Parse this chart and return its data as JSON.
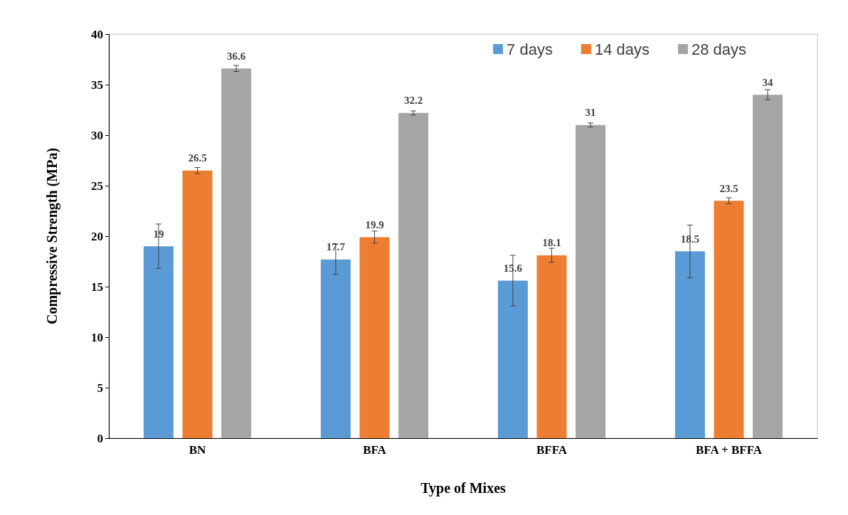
{
  "chart_data": {
    "type": "bar",
    "xlabel": "Type of Mixes",
    "ylabel": "Compressive Strength (MPa)",
    "categories": [
      "BN",
      "BFA",
      "BFFA",
      "BFA + BFFA"
    ],
    "series": [
      {
        "name": "7 days",
        "color": "#5b9bd5",
        "values": [
          19,
          17.7,
          15.6,
          18.5
        ],
        "errors": [
          2.2,
          1.5,
          2.5,
          2.6
        ]
      },
      {
        "name": "14 days",
        "color": "#ed7d31",
        "values": [
          26.5,
          19.9,
          18.1,
          23.5
        ],
        "errors": [
          0.3,
          0.6,
          0.7,
          0.3
        ]
      },
      {
        "name": "28 days",
        "color": "#a5a5a5",
        "values": [
          36.6,
          32.2,
          31,
          34
        ],
        "errors": [
          0.3,
          0.2,
          0.2,
          0.5
        ]
      }
    ],
    "ylim": [
      0,
      40
    ],
    "yticks": [
      0,
      5,
      10,
      15,
      20,
      25,
      30,
      35,
      40
    ],
    "grid": false,
    "legend": "top right",
    "data_labels": true
  }
}
